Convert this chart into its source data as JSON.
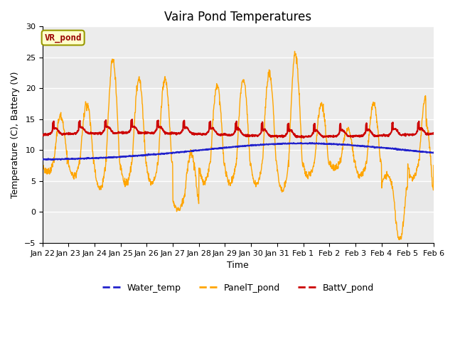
{
  "title": "Vaira Pond Temperatures",
  "xlabel": "Time",
  "ylabel": "Temperature (C), Battery (V)",
  "ylim": [
    -5,
    30
  ],
  "xlim": [
    0,
    15
  ],
  "plot_bg_color": "#e8e8e8",
  "fig_bg_color": "#ffffff",
  "annotation_text": "VR_pond",
  "annotation_color": "#990000",
  "annotation_border_color": "#999900",
  "annotation_bg": "#ffffcc",
  "x_tick_labels": [
    "Jan 22",
    "Jan 23",
    "Jan 24",
    "Jan 25",
    "Jan 26",
    "Jan 27",
    "Jan 28",
    "Jan 29",
    "Jan 30",
    "Jan 31",
    "Feb 1",
    "Feb 2",
    "Feb 3",
    "Feb 4",
    "Feb 5",
    "Feb 6"
  ],
  "water_temp_color": "#2222cc",
  "panel_temp_color": "#FFA500",
  "battv_pond_color": "#cc0000",
  "legend_labels": [
    "Water_temp",
    "PanelT_pond",
    "BattV_pond"
  ],
  "grid_color": "#ffffff",
  "title_fontsize": 12,
  "axis_label_fontsize": 9,
  "tick_fontsize": 8
}
